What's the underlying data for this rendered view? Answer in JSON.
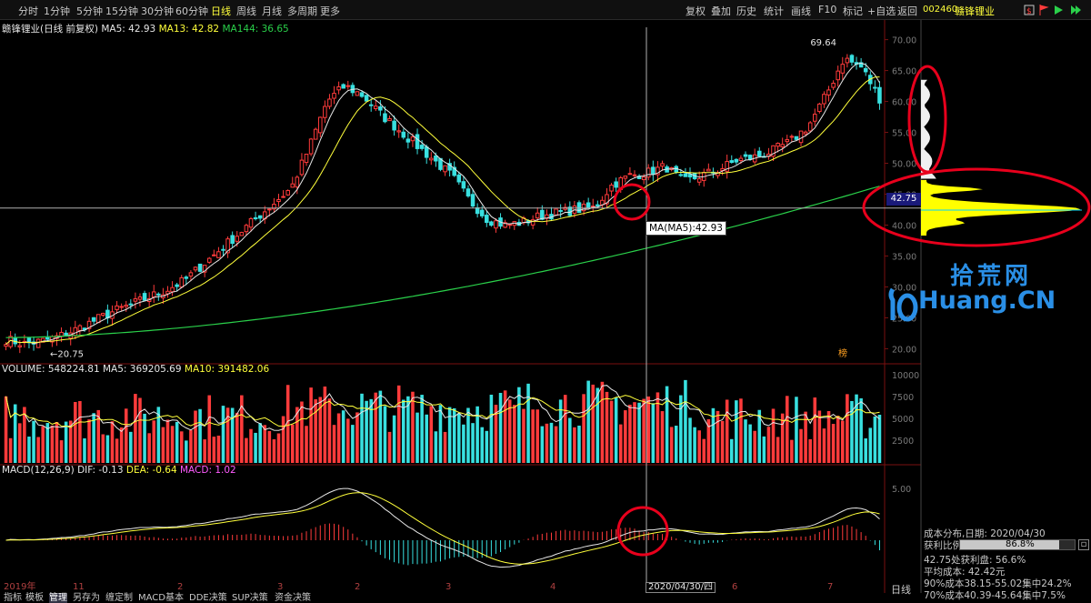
{
  "toolbar": {
    "timeframes": [
      "分时",
      "1分钟",
      "5分钟",
      "15分钟",
      "30分钟",
      "60分钟",
      "日线",
      "周线",
      "月线",
      "多周期",
      "更多"
    ],
    "active_timeframe": "日线",
    "tools": [
      "复权",
      "叠加",
      "历史",
      "统计",
      "画线",
      "F10",
      "标记",
      "+自选",
      "返回"
    ],
    "stock_code": "002460",
    "stock_name": "赣锋锂业",
    "icons": [
      "alarm-icon",
      "flag-icon",
      "play-icon",
      "forward-icon"
    ]
  },
  "price_panel": {
    "title": "赣锋锂业(日线 前复权)",
    "ma5": "MA5: 42.93",
    "ma13": "MA13: 42.82",
    "ma144": "MA144: 36.65",
    "y_ticks": [
      "70.00",
      "65.00",
      "60.00",
      "55.00",
      "50.00",
      "45.00",
      "40.00",
      "35.00",
      "30.00",
      "25.00",
      "20.00"
    ],
    "high_label": "69.64",
    "low_label": "20.75",
    "cross_price": "42.75",
    "tooltip": "MA(MA5):42.93",
    "corner_mark": "榜"
  },
  "volume_panel": {
    "label": "VOLUME: 548224.81",
    "ma5": "MA5: 369205.69",
    "ma10": "MA10: 391482.06",
    "y_ticks": [
      "10000",
      "7500",
      "5000",
      "2500"
    ]
  },
  "macd_panel": {
    "label": "MACD(12,26,9)",
    "dif": "DIF: -0.13",
    "dea": "DEA: -0.64",
    "macd": "MACD: 1.02",
    "y_ticks": [
      "5.00"
    ]
  },
  "date_axis": {
    "labels": [
      "2019年",
      "11",
      "2",
      "3",
      "2",
      "3",
      "4",
      "6",
      "7"
    ],
    "cross_date": "2020/04/30/四",
    "period_label": "日线"
  },
  "cost_distribution": {
    "title": "成本分布,日期: 2020/04/30",
    "profit_ratio_label": "获利比例:",
    "profit_ratio": "86.8%",
    "profit_ratio_value": 0.868,
    "line1": "42.75处获利盘: 56.6%",
    "line2": "平均成本: 42.42元",
    "line3": "90%成本38.15-55.02集中24.2%",
    "line4": "70%成本40.39-45.64集中7.5%"
  },
  "bottom_tabs": [
    "指标",
    "模板",
    "管理",
    "另存为",
    "缠定制",
    "MACD基本",
    "DDE决策",
    "SUP决策",
    "资金决策"
  ],
  "active_bottom_tab": "管理",
  "watermark": {
    "cn": "拾荒网",
    "en": "Huang.CN"
  },
  "colors": {
    "up": "#ff3b3b",
    "down": "#38e0e0",
    "ma5": "#e6e6e6",
    "ma13": "#ffff3b",
    "ma144": "#2ad04a",
    "chip": "#ffff00",
    "annotation": "#e8001c",
    "brand": "#2a8fe6"
  },
  "chart_data": {
    "type": "candlestick",
    "y_range": [
      18,
      72
    ],
    "high": 69.64,
    "low": 20.75,
    "current_ma5": 42.93,
    "current_ma13": 42.82,
    "current_ma144": 36.65,
    "approx_close_path": [
      21.5,
      20.8,
      21.2,
      22.0,
      23.2,
      24.6,
      26.0,
      27.1,
      28.3,
      29.5,
      31.0,
      33.5,
      36.0,
      38.5,
      41.0,
      43.5,
      46.0,
      52.5,
      60.0,
      62.5,
      61.0,
      58.0,
      55.5,
      53.0,
      50.5,
      48.0,
      44.0,
      41.0,
      40.0,
      40.5,
      41.5,
      42.0,
      42.5,
      42.8,
      46.5,
      48.0,
      48.5,
      49.5,
      47.0,
      48.0,
      49.0,
      50.5,
      51.0,
      52.0,
      53.5,
      56.0,
      61.0,
      67.0,
      65.5,
      60.5
    ]
  }
}
